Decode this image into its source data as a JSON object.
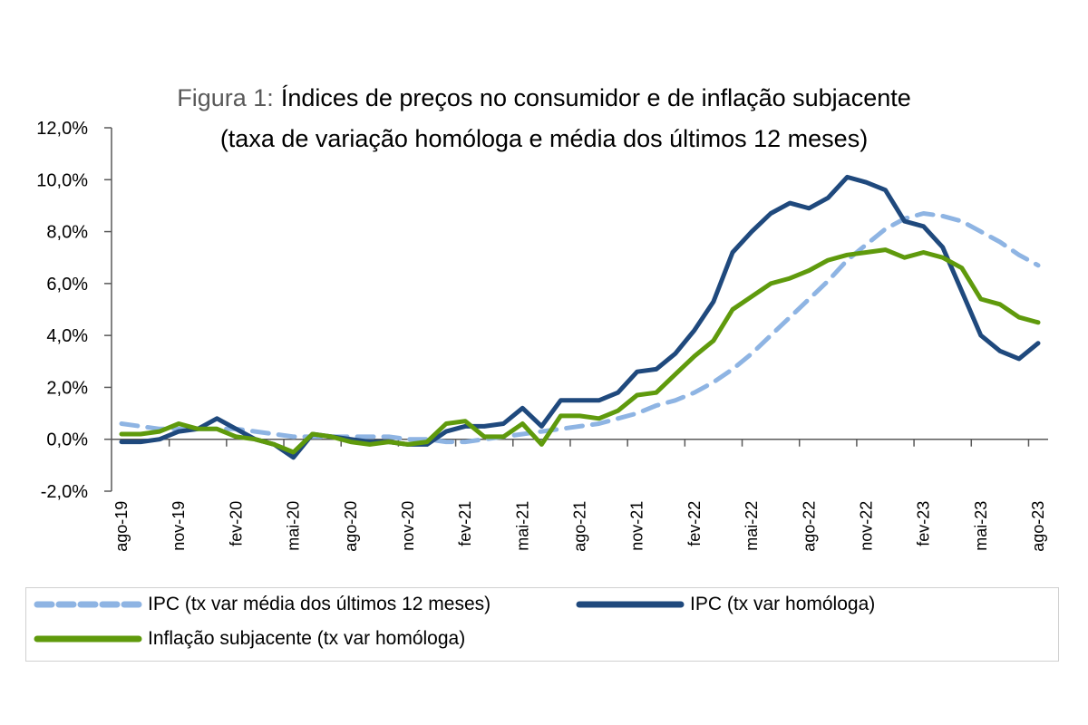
{
  "chart_data": {
    "type": "line",
    "title_prefix": "Figura 1:",
    "title": "Índices de preços no consumidor e de inflação subjacente",
    "subtitle": "(taxa de variação homóloga e média dos últimos 12 meses)",
    "xlabel": "",
    "ylabel": "",
    "ylim": [
      -2.0,
      12.0
    ],
    "yticks": [
      -2.0,
      0.0,
      2.0,
      4.0,
      6.0,
      8.0,
      10.0,
      12.0
    ],
    "ytick_labels": [
      "-2,0%",
      "0,0%",
      "2,0%",
      "4,0%",
      "6,0%",
      "8,0%",
      "10,0%",
      "12,0%"
    ],
    "x": [
      "ago-19",
      "set-19",
      "out-19",
      "nov-19",
      "dez-19",
      "jan-20",
      "fev-20",
      "mar-20",
      "abr-20",
      "mai-20",
      "jun-20",
      "jul-20",
      "ago-20",
      "set-20",
      "out-20",
      "nov-20",
      "dez-20",
      "jan-21",
      "fev-21",
      "mar-21",
      "abr-21",
      "mai-21",
      "jun-21",
      "jul-21",
      "ago-21",
      "set-21",
      "out-21",
      "nov-21",
      "dez-21",
      "jan-22",
      "fev-22",
      "mar-22",
      "abr-22",
      "mai-22",
      "jun-22",
      "jul-22",
      "ago-22",
      "set-22",
      "out-22",
      "nov-22",
      "dez-22",
      "jan-23",
      "fev-23",
      "mar-23",
      "abr-23",
      "mai-23",
      "jun-23",
      "jul-23",
      "ago-23"
    ],
    "xtick_labels": [
      "ago-19",
      "nov-19",
      "fev-20",
      "mai-20",
      "ago-20",
      "nov-20",
      "fev-21",
      "mai-21",
      "ago-21",
      "nov-21",
      "fev-22",
      "mai-22",
      "ago-22",
      "nov-22",
      "fev-23",
      "mai-23",
      "ago-23"
    ],
    "grid": false,
    "legend_position": "bottom",
    "series": [
      {
        "name": "IPC (tx var média dos últimos 12 meses)",
        "color": "#8EB4E3",
        "style": "dashed",
        "values": [
          0.6,
          0.5,
          0.4,
          0.4,
          0.4,
          0.4,
          0.4,
          0.3,
          0.2,
          0.1,
          0.1,
          0.1,
          0.1,
          0.1,
          0.1,
          0.0,
          0.0,
          -0.1,
          -0.1,
          0.0,
          0.1,
          0.2,
          0.3,
          0.4,
          0.5,
          0.6,
          0.8,
          1.0,
          1.3,
          1.5,
          1.8,
          2.2,
          2.7,
          3.3,
          4.0,
          4.7,
          5.4,
          6.1,
          6.9,
          7.5,
          8.1,
          8.5,
          8.7,
          8.6,
          8.4,
          8.0,
          7.6,
          7.1,
          6.7
        ]
      },
      {
        "name": "IPC (tx var homóloga)",
        "color": "#1F497D",
        "style": "solid",
        "values": [
          -0.1,
          -0.1,
          0.0,
          0.3,
          0.4,
          0.8,
          0.4,
          0.0,
          -0.2,
          -0.7,
          0.2,
          0.1,
          0.0,
          -0.1,
          -0.1,
          -0.2,
          -0.2,
          0.3,
          0.5,
          0.5,
          0.6,
          1.2,
          0.5,
          1.5,
          1.5,
          1.5,
          1.8,
          2.6,
          2.7,
          3.3,
          4.2,
          5.3,
          7.2,
          8.0,
          8.7,
          9.1,
          8.9,
          9.3,
          10.1,
          9.9,
          9.6,
          8.4,
          8.2,
          7.4,
          5.7,
          4.0,
          3.4,
          3.1,
          3.7
        ]
      },
      {
        "name": "Inflação subjacente (tx var homóloga)",
        "color": "#5F9A0C",
        "style": "solid",
        "values": [
          0.2,
          0.2,
          0.3,
          0.6,
          0.4,
          0.4,
          0.1,
          0.0,
          -0.2,
          -0.5,
          0.2,
          0.1,
          -0.1,
          -0.2,
          -0.1,
          -0.2,
          -0.1,
          0.6,
          0.7,
          0.1,
          0.1,
          0.6,
          -0.2,
          0.9,
          0.9,
          0.8,
          1.1,
          1.7,
          1.8,
          2.5,
          3.2,
          3.8,
          5.0,
          5.5,
          6.0,
          6.2,
          6.5,
          6.9,
          7.1,
          7.2,
          7.3,
          7.0,
          7.2,
          7.0,
          6.6,
          5.4,
          5.2,
          4.7,
          4.5
        ]
      }
    ]
  },
  "colors": {
    "axis": "#595959",
    "title_prefix": "#595959"
  }
}
